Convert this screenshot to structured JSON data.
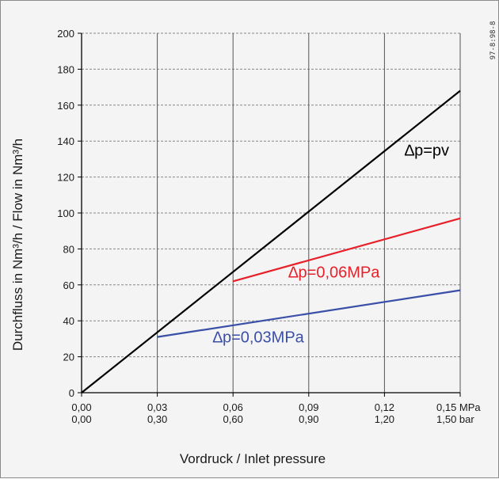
{
  "colors": {
    "background": "#f4f4f4",
    "grid_h": "#888888",
    "grid_v": "#555555",
    "axis": "#000000",
    "series_pv": "#000000",
    "series_006": "#e8202a",
    "series_003": "#3a4fa8"
  },
  "side_code": "97-8:98-8",
  "chart_data": {
    "type": "line",
    "xlabel": "Vordruck / Inlet pressure",
    "ylabel": "Durchfluss in Nm³/h   /  Flow in Nm³/h",
    "xlim": [
      0,
      0.15
    ],
    "ylim": [
      0,
      200
    ],
    "grid": true,
    "x_ticks_mpa": [
      "0,00",
      "0,03",
      "0,06",
      "0,09",
      "0,12",
      "0,15 MPa"
    ],
    "x_ticks_bar": [
      "0,00",
      "0,30",
      "0,60",
      "0,90",
      "1,20",
      "1,50 bar"
    ],
    "x_tick_values": [
      0,
      0.03,
      0.06,
      0.09,
      0.12,
      0.15
    ],
    "y_ticks": [
      "0",
      "20",
      "40",
      "60",
      "80",
      "100",
      "120",
      "140",
      "160",
      "180",
      "200"
    ],
    "y_tick_values": [
      0,
      20,
      40,
      60,
      80,
      100,
      120,
      140,
      160,
      180,
      200
    ],
    "series": [
      {
        "name": "∆p=pv",
        "color": "#000000",
        "points": [
          [
            0,
            0
          ],
          [
            0.15,
            168
          ]
        ],
        "label_at": [
          0.128,
          132
        ]
      },
      {
        "name": "∆p=0,06MPa",
        "color": "#e8202a",
        "points": [
          [
            0.06,
            62
          ],
          [
            0.15,
            97
          ]
        ],
        "label_at": [
          0.082,
          64
        ]
      },
      {
        "name": "∆p=0,03MPa",
        "color": "#3a4fa8",
        "points": [
          [
            0.03,
            31
          ],
          [
            0.15,
            57
          ]
        ],
        "label_at": [
          0.052,
          28
        ]
      }
    ]
  }
}
